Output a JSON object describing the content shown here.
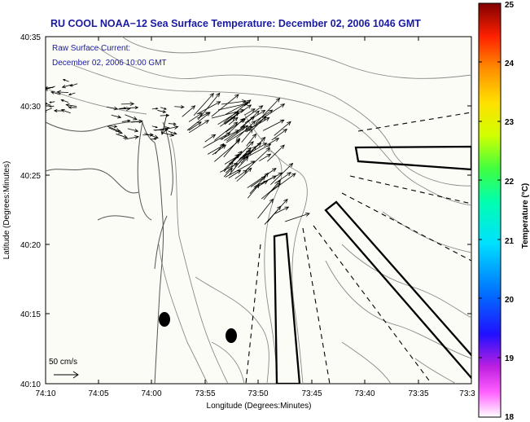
{
  "title": "RU COOL  NOAA−12  Sea Surface Temperature:  December 02, 2006 1046 GMT",
  "annotation": {
    "line1": "Raw Surface Current:",
    "line2": "December 02, 2006 10:00 GMT"
  },
  "axes": {
    "xlabel": "Longitude (Degrees:Minutes)",
    "ylabel": "Latitude (Degrees:Minutes)",
    "xticks": [
      "74:10",
      "74:05",
      "74:00",
      "73:55",
      "73:50",
      "73:45",
      "73:40",
      "73:35",
      "73:3"
    ],
    "yticks": [
      "40:35",
      "40:30",
      "40:25",
      "40:20",
      "40:15",
      "40:10"
    ]
  },
  "colorbar": {
    "label": "Temperature (°C)",
    "ticks": [
      "25",
      "24",
      "23",
      "22",
      "21",
      "20",
      "19",
      "18"
    ]
  },
  "scale": {
    "label": "50 cm/s"
  },
  "colors": {
    "title": "#1a1aa0",
    "contour": "#8a8a8a",
    "map_bg": "#fcfcf6"
  }
}
